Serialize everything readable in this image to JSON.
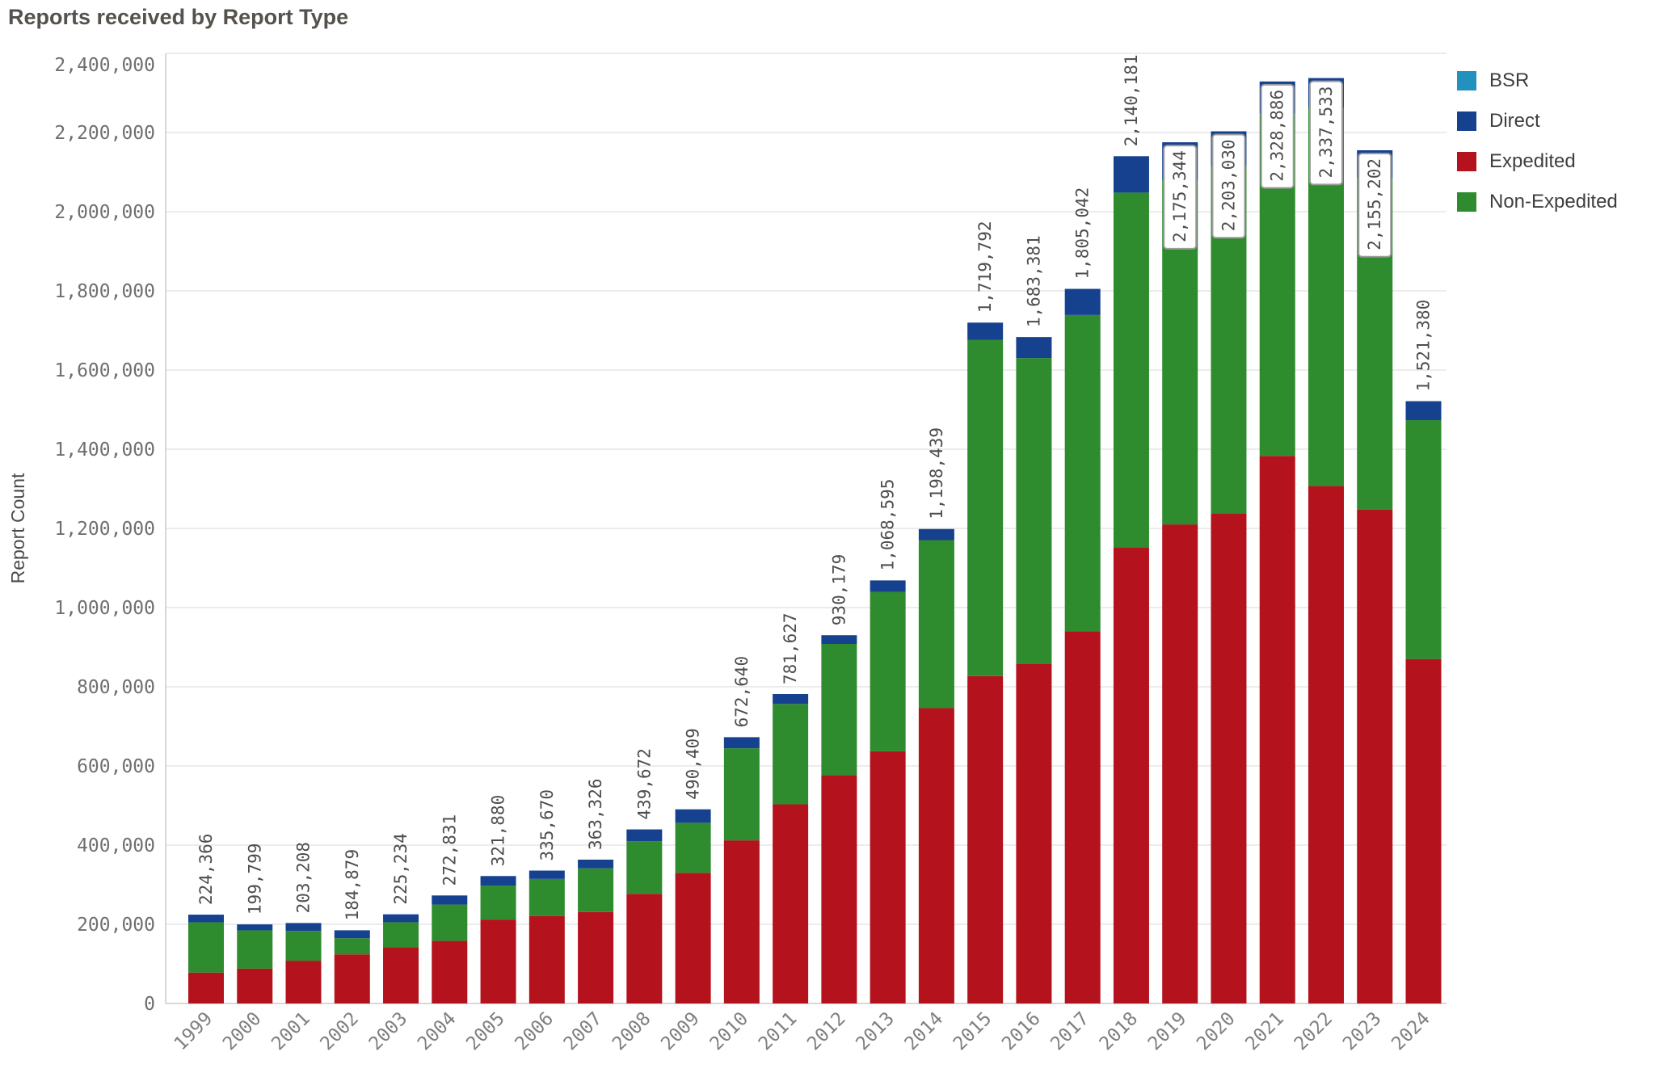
{
  "title": "Reports received by Report Type",
  "y_axis": {
    "title": "Report Count",
    "tick_labels": [
      "0",
      "200,000",
      "400,000",
      "600,000",
      "800,000",
      "1,000,000",
      "1,200,000",
      "1,400,000",
      "1,600,000",
      "1,800,000",
      "2,000,000",
      "2,200,000",
      "2,400,000"
    ]
  },
  "legend": [
    {
      "label": "BSR",
      "color": "#2391bd"
    },
    {
      "label": "Direct",
      "color": "#16418f"
    },
    {
      "label": "Expedited",
      "color": "#b4121c"
    },
    {
      "label": "Non-Expedited",
      "color": "#2e8b2e"
    }
  ],
  "chart_data": {
    "type": "bar",
    "stacked": true,
    "title": "Reports received by Report Type",
    "xlabel": "",
    "ylabel": "Report Count",
    "ylim": [
      0,
      2400000
    ],
    "y_tick_step": 200000,
    "grid": true,
    "legend_position": "top-right",
    "categories": [
      "1999",
      "2000",
      "2001",
      "2002",
      "2003",
      "2004",
      "2005",
      "2006",
      "2007",
      "2008",
      "2009",
      "2010",
      "2011",
      "2012",
      "2013",
      "2014",
      "2015",
      "2016",
      "2017",
      "2018",
      "2019",
      "2020",
      "2021",
      "2022",
      "2023",
      "2024"
    ],
    "totals": [
      224366,
      199799,
      203208,
      184879,
      225234,
      272831,
      321880,
      335670,
      363326,
      439672,
      490409,
      672640,
      781627,
      930179,
      1068595,
      1198439,
      1719792,
      1683381,
      1805042,
      2140181,
      2175344,
      2203030,
      2328886,
      2337533,
      2155202,
      1521380
    ],
    "total_labels": [
      "224,366",
      "199,799",
      "203,208",
      "184,879",
      "225,234",
      "272,831",
      "321,880",
      "335,670",
      "363,326",
      "439,672",
      "490,409",
      "672,640",
      "781,627",
      "930,179",
      "1,068,595",
      "1,198,439",
      "1,719,792",
      "1,683,381",
      "1,805,042",
      "2,140,181",
      "2,175,344",
      "2,203,030",
      "2,328,886",
      "2,337,533",
      "2,155,202",
      "1,521,380"
    ],
    "boxed_label_categories": [
      "2019",
      "2020",
      "2021",
      "2022",
      "2023"
    ],
    "series": [
      {
        "name": "Expedited",
        "color": "#b4121c",
        "values": [
          78000,
          88000,
          108000,
          124000,
          142000,
          158000,
          212000,
          221000,
          231000,
          277000,
          330000,
          412000,
          503000,
          577000,
          637000,
          746000,
          827000,
          858000,
          940000,
          1151000,
          1210000,
          1238000,
          1383000,
          1307000,
          1247000,
          870000
        ]
      },
      {
        "name": "Non-Expedited",
        "color": "#2e8b2e",
        "values": [
          127000,
          96799,
          75208,
          40879,
          63234,
          91831,
          85880,
          93670,
          110326,
          132672,
          126409,
          232640,
          253627,
          331179,
          402595,
          424439,
          848792,
          772381,
          799042,
          897181,
          870344,
          877030,
          865886,
          955533,
          838202,
          603380
        ]
      },
      {
        "name": "Direct",
        "color": "#16418f",
        "values": [
          19366,
          15000,
          20000,
          20000,
          20000,
          23000,
          24000,
          21000,
          22000,
          30000,
          34000,
          28000,
          25000,
          22000,
          29000,
          28000,
          44000,
          53000,
          66000,
          92000,
          95000,
          88000,
          80000,
          75000,
          70000,
          48000
        ]
      },
      {
        "name": "BSR",
        "color": "#2391bd",
        "values": [
          0,
          0,
          0,
          0,
          0,
          0,
          0,
          0,
          0,
          0,
          0,
          0,
          0,
          0,
          0,
          0,
          0,
          0,
          0,
          0,
          0,
          0,
          0,
          0,
          0,
          0
        ]
      }
    ]
  },
  "colors": {
    "background": "#ffffff",
    "gridline": "#d8d8d8",
    "axis_line": "#b0b0b0",
    "tick_text": "#6f6f6f",
    "data_label_text": "#4d4d4d",
    "title_text": "#55514d"
  }
}
